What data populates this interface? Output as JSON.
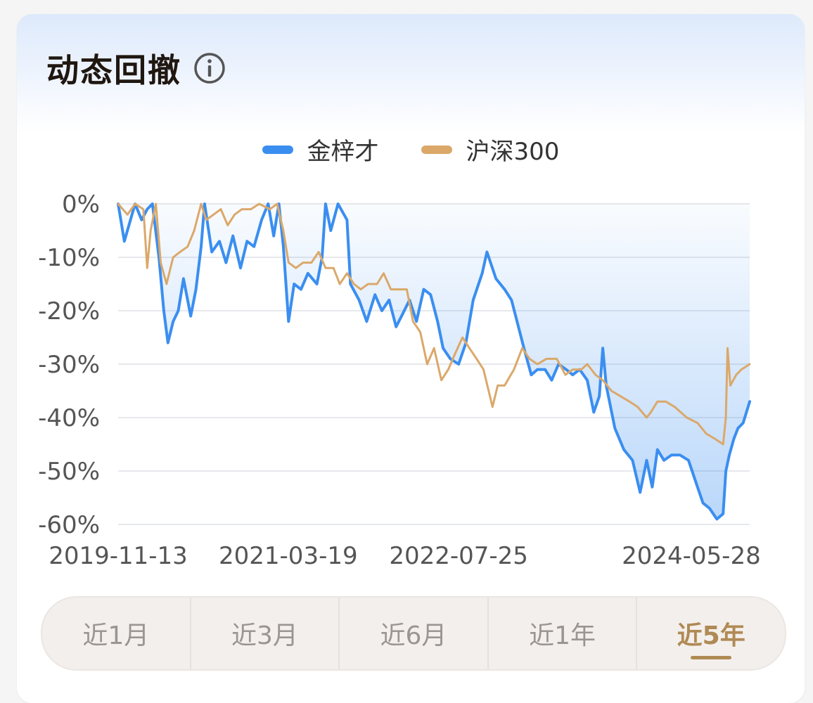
{
  "header": {
    "title": "动态回撤"
  },
  "legend": [
    {
      "label": "金梓才",
      "color": "#3a8ef0"
    },
    {
      "label": "沪深300",
      "color": "#dba86a"
    }
  ],
  "tabs": [
    {
      "label": "近1月",
      "active": false
    },
    {
      "label": "近3月",
      "active": false
    },
    {
      "label": "近6月",
      "active": false
    },
    {
      "label": "近1年",
      "active": false
    },
    {
      "label": "近5年",
      "active": true
    }
  ],
  "chart_data": {
    "type": "area",
    "title": "",
    "xlabel": "",
    "ylabel": "",
    "ylim": [
      -60,
      0
    ],
    "y_ticks": [
      0,
      -10,
      -20,
      -30,
      -40,
      -50,
      -60
    ],
    "y_tick_labels": [
      "0%",
      "-10%",
      "-20%",
      "-30%",
      "-40%",
      "-50%",
      "-60%"
    ],
    "x_tick_labels": [
      "2019-11-13",
      "2021-03-19",
      "2022-07-25",
      "2024-05-28"
    ],
    "x_range": [
      "2019-11-13",
      "2024-11-13"
    ],
    "grid": true,
    "legend_position": "top-center",
    "series": [
      {
        "name": "金梓才",
        "color": "#3a8ef0",
        "filled": true,
        "points": [
          [
            "2019-11-13",
            0
          ],
          [
            "2019-12-01",
            -7
          ],
          [
            "2020-01-01",
            0
          ],
          [
            "2020-01-20",
            -3
          ],
          [
            "2020-02-05",
            -1
          ],
          [
            "2020-02-20",
            0
          ],
          [
            "2020-03-10",
            -10
          ],
          [
            "2020-03-24",
            -20
          ],
          [
            "2020-04-05",
            -26
          ],
          [
            "2020-04-20",
            -22
          ],
          [
            "2020-05-05",
            -20
          ],
          [
            "2020-05-20",
            -14
          ],
          [
            "2020-06-10",
            -21
          ],
          [
            "2020-06-25",
            -16
          ],
          [
            "2020-07-10",
            -8
          ],
          [
            "2020-07-20",
            0
          ],
          [
            "2020-08-10",
            -9
          ],
          [
            "2020-09-01",
            -7
          ],
          [
            "2020-09-20",
            -11
          ],
          [
            "2020-10-10",
            -6
          ],
          [
            "2020-11-01",
            -12
          ],
          [
            "2020-11-20",
            -7
          ],
          [
            "2020-12-10",
            -8
          ],
          [
            "2021-01-01",
            -3
          ],
          [
            "2021-01-20",
            0
          ],
          [
            "2021-02-05",
            -6
          ],
          [
            "2021-02-20",
            0
          ],
          [
            "2021-03-05",
            -8
          ],
          [
            "2021-03-20",
            -22
          ],
          [
            "2021-04-05",
            -15
          ],
          [
            "2021-04-25",
            -16
          ],
          [
            "2021-05-15",
            -13
          ],
          [
            "2021-06-10",
            -15
          ],
          [
            "2021-06-25",
            -10
          ],
          [
            "2021-07-05",
            0
          ],
          [
            "2021-07-20",
            -5
          ],
          [
            "2021-08-10",
            0
          ],
          [
            "2021-09-05",
            -3
          ],
          [
            "2021-09-15",
            -15
          ],
          [
            "2021-10-10",
            -18
          ],
          [
            "2021-11-01",
            -22
          ],
          [
            "2021-11-25",
            -17
          ],
          [
            "2021-12-15",
            -20
          ],
          [
            "2022-01-05",
            -18
          ],
          [
            "2022-01-25",
            -23
          ],
          [
            "2022-02-10",
            -21
          ],
          [
            "2022-03-05",
            -18
          ],
          [
            "2022-03-25",
            -22
          ],
          [
            "2022-04-15",
            -16
          ],
          [
            "2022-05-05",
            -17
          ],
          [
            "2022-05-25",
            -22
          ],
          [
            "2022-06-10",
            -27
          ],
          [
            "2022-07-01",
            -29
          ],
          [
            "2022-07-25",
            -30
          ],
          [
            "2022-08-15",
            -26
          ],
          [
            "2022-09-05",
            -18
          ],
          [
            "2022-10-01",
            -13
          ],
          [
            "2022-10-15",
            -9
          ],
          [
            "2022-11-10",
            -14
          ],
          [
            "2022-12-05",
            -16
          ],
          [
            "2022-12-25",
            -18
          ],
          [
            "2023-01-10",
            -22
          ],
          [
            "2023-01-30",
            -27
          ],
          [
            "2023-02-20",
            -32
          ],
          [
            "2023-03-10",
            -31
          ],
          [
            "2023-04-01",
            -31
          ],
          [
            "2023-04-20",
            -33
          ],
          [
            "2023-05-10",
            -30
          ],
          [
            "2023-06-01",
            -31
          ],
          [
            "2023-06-20",
            -32
          ],
          [
            "2023-07-10",
            -31
          ],
          [
            "2023-08-01",
            -33
          ],
          [
            "2023-08-20",
            -39
          ],
          [
            "2023-09-05",
            -36
          ],
          [
            "2023-09-15",
            -27
          ],
          [
            "2023-09-25",
            -34
          ],
          [
            "2023-10-20",
            -42
          ],
          [
            "2023-11-15",
            -46
          ],
          [
            "2023-12-10",
            -48
          ],
          [
            "2024-01-01",
            -54
          ],
          [
            "2024-01-20",
            -48
          ],
          [
            "2024-02-05",
            -53
          ],
          [
            "2024-02-20",
            -46
          ],
          [
            "2024-03-10",
            -48
          ],
          [
            "2024-04-01",
            -47
          ],
          [
            "2024-04-25",
            -47
          ],
          [
            "2024-05-20",
            -48
          ],
          [
            "2024-06-15",
            -53
          ],
          [
            "2024-07-01",
            -56
          ],
          [
            "2024-07-20",
            -57
          ],
          [
            "2024-08-10",
            -59
          ],
          [
            "2024-08-28",
            -58
          ],
          [
            "2024-09-05",
            -50
          ],
          [
            "2024-09-15",
            -47
          ],
          [
            "2024-09-28",
            -44
          ],
          [
            "2024-10-10",
            -42
          ],
          [
            "2024-10-25",
            -41
          ],
          [
            "2024-11-13",
            -37
          ]
        ]
      },
      {
        "name": "沪深300",
        "color": "#dba86a",
        "filled": false,
        "points": [
          [
            "2019-11-13",
            0
          ],
          [
            "2019-12-10",
            -2
          ],
          [
            "2020-01-01",
            0
          ],
          [
            "2020-01-25",
            -1
          ],
          [
            "2020-02-05",
            -12
          ],
          [
            "2020-02-15",
            -5
          ],
          [
            "2020-03-01",
            0
          ],
          [
            "2020-03-15",
            -11
          ],
          [
            "2020-04-01",
            -15
          ],
          [
            "2020-04-20",
            -10
          ],
          [
            "2020-05-10",
            -9
          ],
          [
            "2020-06-01",
            -8
          ],
          [
            "2020-06-20",
            -5
          ],
          [
            "2020-07-10",
            0
          ],
          [
            "2020-07-25",
            -3
          ],
          [
            "2020-08-15",
            -2
          ],
          [
            "2020-09-05",
            -1
          ],
          [
            "2020-09-25",
            -4
          ],
          [
            "2020-10-15",
            -2
          ],
          [
            "2020-11-05",
            -1
          ],
          [
            "2020-12-01",
            -1
          ],
          [
            "2020-12-25",
            0
          ],
          [
            "2021-01-25",
            -1
          ],
          [
            "2021-02-15",
            0
          ],
          [
            "2021-03-05",
            -5
          ],
          [
            "2021-03-20",
            -11
          ],
          [
            "2021-04-10",
            -12
          ],
          [
            "2021-05-01",
            -11
          ],
          [
            "2021-05-25",
            -11
          ],
          [
            "2021-06-15",
            -9
          ],
          [
            "2021-07-05",
            -12
          ],
          [
            "2021-07-28",
            -12
          ],
          [
            "2021-08-15",
            -15
          ],
          [
            "2021-09-05",
            -13
          ],
          [
            "2021-09-25",
            -15
          ],
          [
            "2021-10-15",
            -16
          ],
          [
            "2021-11-05",
            -15
          ],
          [
            "2021-12-01",
            -15
          ],
          [
            "2021-12-20",
            -13
          ],
          [
            "2022-01-10",
            -16
          ],
          [
            "2022-02-01",
            -16
          ],
          [
            "2022-02-25",
            -16
          ],
          [
            "2022-03-15",
            -22
          ],
          [
            "2022-04-05",
            -24
          ],
          [
            "2022-04-25",
            -30
          ],
          [
            "2022-05-15",
            -27
          ],
          [
            "2022-06-05",
            -33
          ],
          [
            "2022-06-25",
            -31
          ],
          [
            "2022-07-15",
            -28
          ],
          [
            "2022-08-05",
            -25
          ],
          [
            "2022-08-25",
            -27
          ],
          [
            "2022-09-15",
            -29
          ],
          [
            "2022-10-05",
            -31
          ],
          [
            "2022-10-31",
            -38
          ],
          [
            "2022-11-15",
            -34
          ],
          [
            "2022-12-05",
            -34
          ],
          [
            "2023-01-01",
            -31
          ],
          [
            "2023-01-25",
            -27
          ],
          [
            "2023-02-15",
            -29
          ],
          [
            "2023-03-10",
            -30
          ],
          [
            "2023-04-05",
            -29
          ],
          [
            "2023-05-05",
            -29
          ],
          [
            "2023-05-30",
            -32
          ],
          [
            "2023-06-20",
            -31
          ],
          [
            "2023-07-15",
            -31
          ],
          [
            "2023-08-01",
            -30
          ],
          [
            "2023-08-25",
            -32
          ],
          [
            "2023-09-15",
            -33
          ],
          [
            "2023-10-10",
            -35
          ],
          [
            "2023-11-05",
            -36
          ],
          [
            "2023-12-01",
            -37
          ],
          [
            "2023-12-25",
            -38
          ],
          [
            "2024-01-20",
            -40
          ],
          [
            "2024-02-01",
            -39
          ],
          [
            "2024-02-20",
            -37
          ],
          [
            "2024-03-15",
            -37
          ],
          [
            "2024-04-10",
            -38
          ],
          [
            "2024-05-15",
            -40
          ],
          [
            "2024-06-15",
            -41
          ],
          [
            "2024-07-10",
            -43
          ],
          [
            "2024-08-05",
            -44
          ],
          [
            "2024-08-28",
            -45
          ],
          [
            "2024-09-05",
            -40
          ],
          [
            "2024-09-10",
            -27
          ],
          [
            "2024-09-18",
            -34
          ],
          [
            "2024-10-05",
            -32
          ],
          [
            "2024-10-20",
            -31
          ],
          [
            "2024-11-13",
            -30
          ]
        ]
      }
    ]
  }
}
